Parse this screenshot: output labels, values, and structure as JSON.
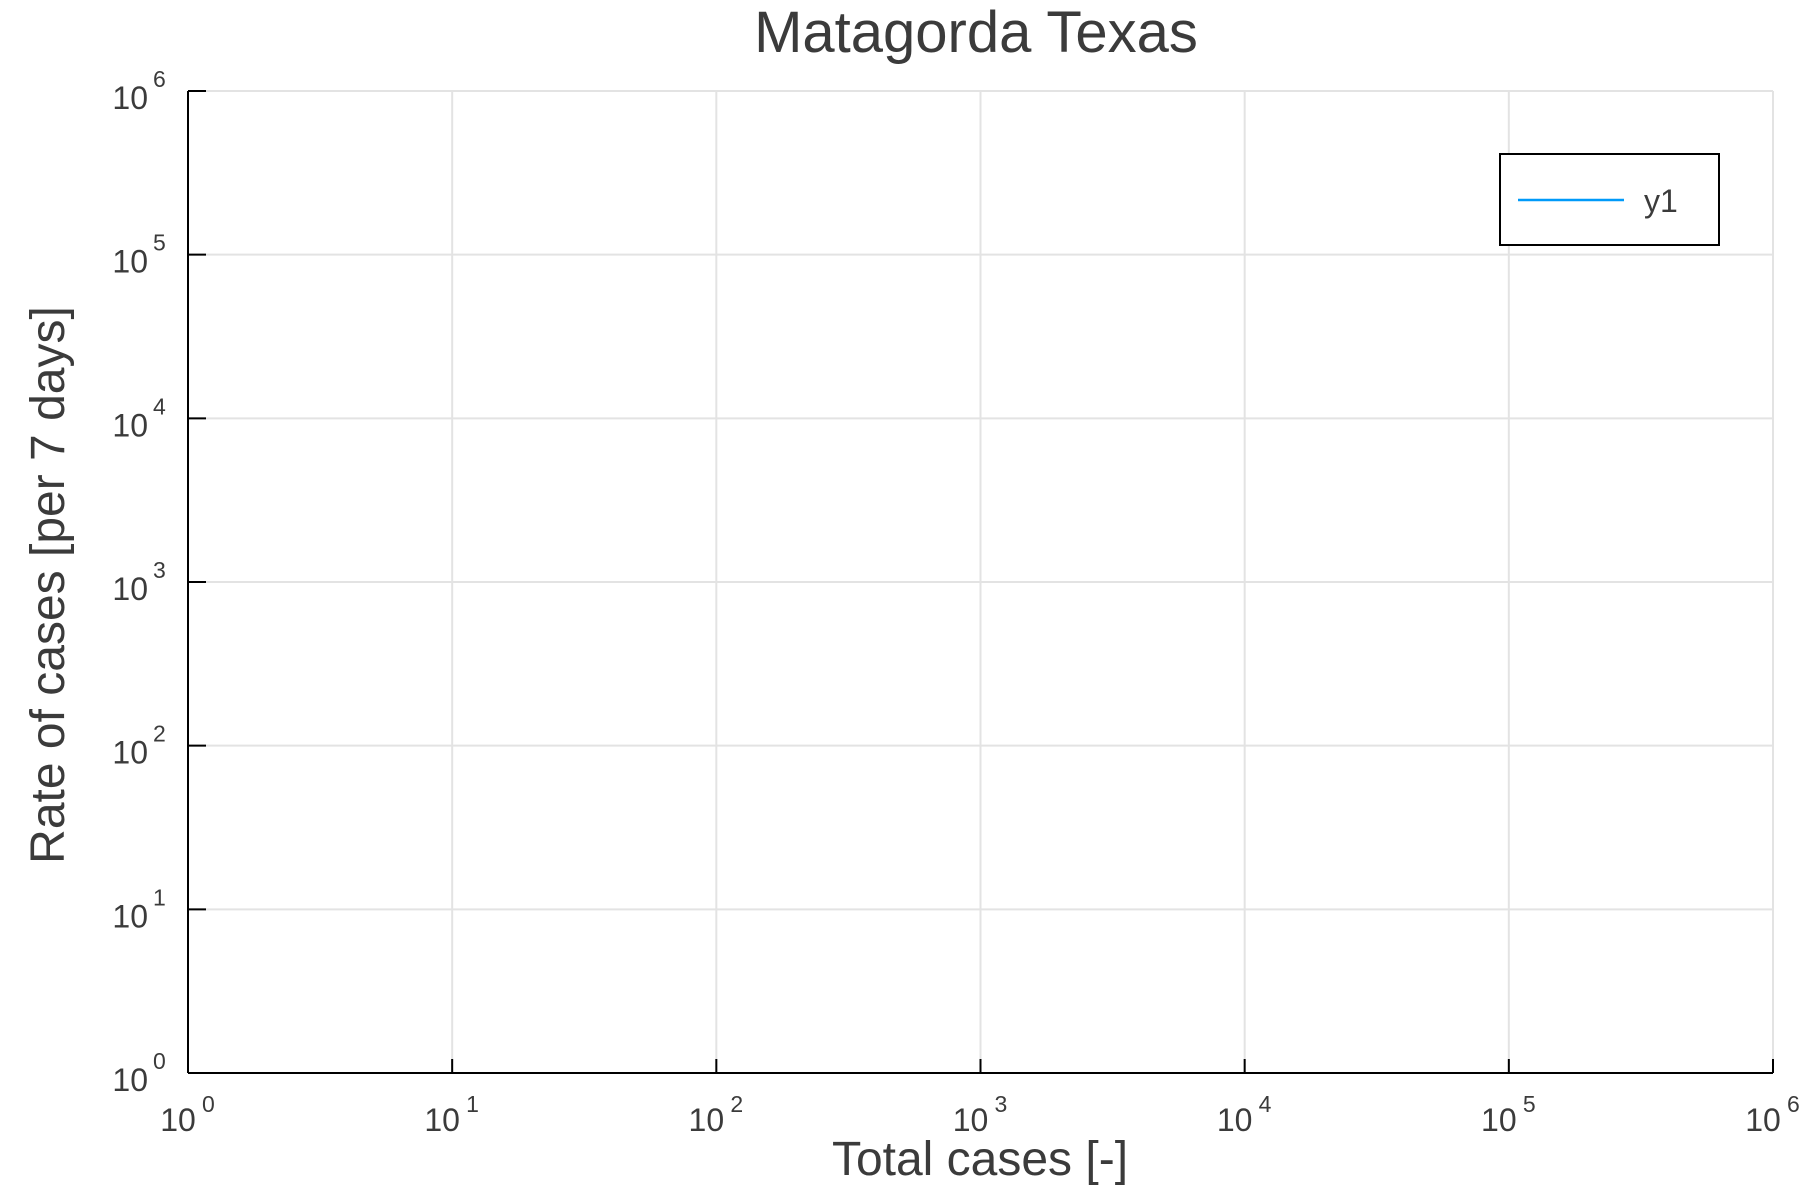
{
  "chart_data": {
    "type": "line",
    "title": "Matagorda Texas",
    "xlabel": "Total cases [-]",
    "ylabel": "Rate of cases [per 7 days]",
    "x_scale": "log",
    "y_scale": "log",
    "xlim": [
      1,
      1000000
    ],
    "ylim": [
      1,
      1000000
    ],
    "grid": true,
    "legend_position": "top-right",
    "x_ticks": [
      {
        "value": 1,
        "base": "10",
        "exp": "0"
      },
      {
        "value": 10,
        "base": "10",
        "exp": "1"
      },
      {
        "value": 100,
        "base": "10",
        "exp": "2"
      },
      {
        "value": 1000,
        "base": "10",
        "exp": "3"
      },
      {
        "value": 10000,
        "base": "10",
        "exp": "4"
      },
      {
        "value": 100000,
        "base": "10",
        "exp": "5"
      },
      {
        "value": 1000000,
        "base": "10",
        "exp": "6"
      }
    ],
    "y_ticks": [
      {
        "value": 1,
        "base": "10",
        "exp": "0"
      },
      {
        "value": 10,
        "base": "10",
        "exp": "1"
      },
      {
        "value": 100,
        "base": "10",
        "exp": "2"
      },
      {
        "value": 1000,
        "base": "10",
        "exp": "3"
      },
      {
        "value": 10000,
        "base": "10",
        "exp": "4"
      },
      {
        "value": 100000,
        "base": "10",
        "exp": "5"
      },
      {
        "value": 1000000,
        "base": "10",
        "exp": "6"
      }
    ],
    "series": [
      {
        "name": "y1",
        "color": "#009af9",
        "x": [],
        "y": []
      }
    ]
  }
}
